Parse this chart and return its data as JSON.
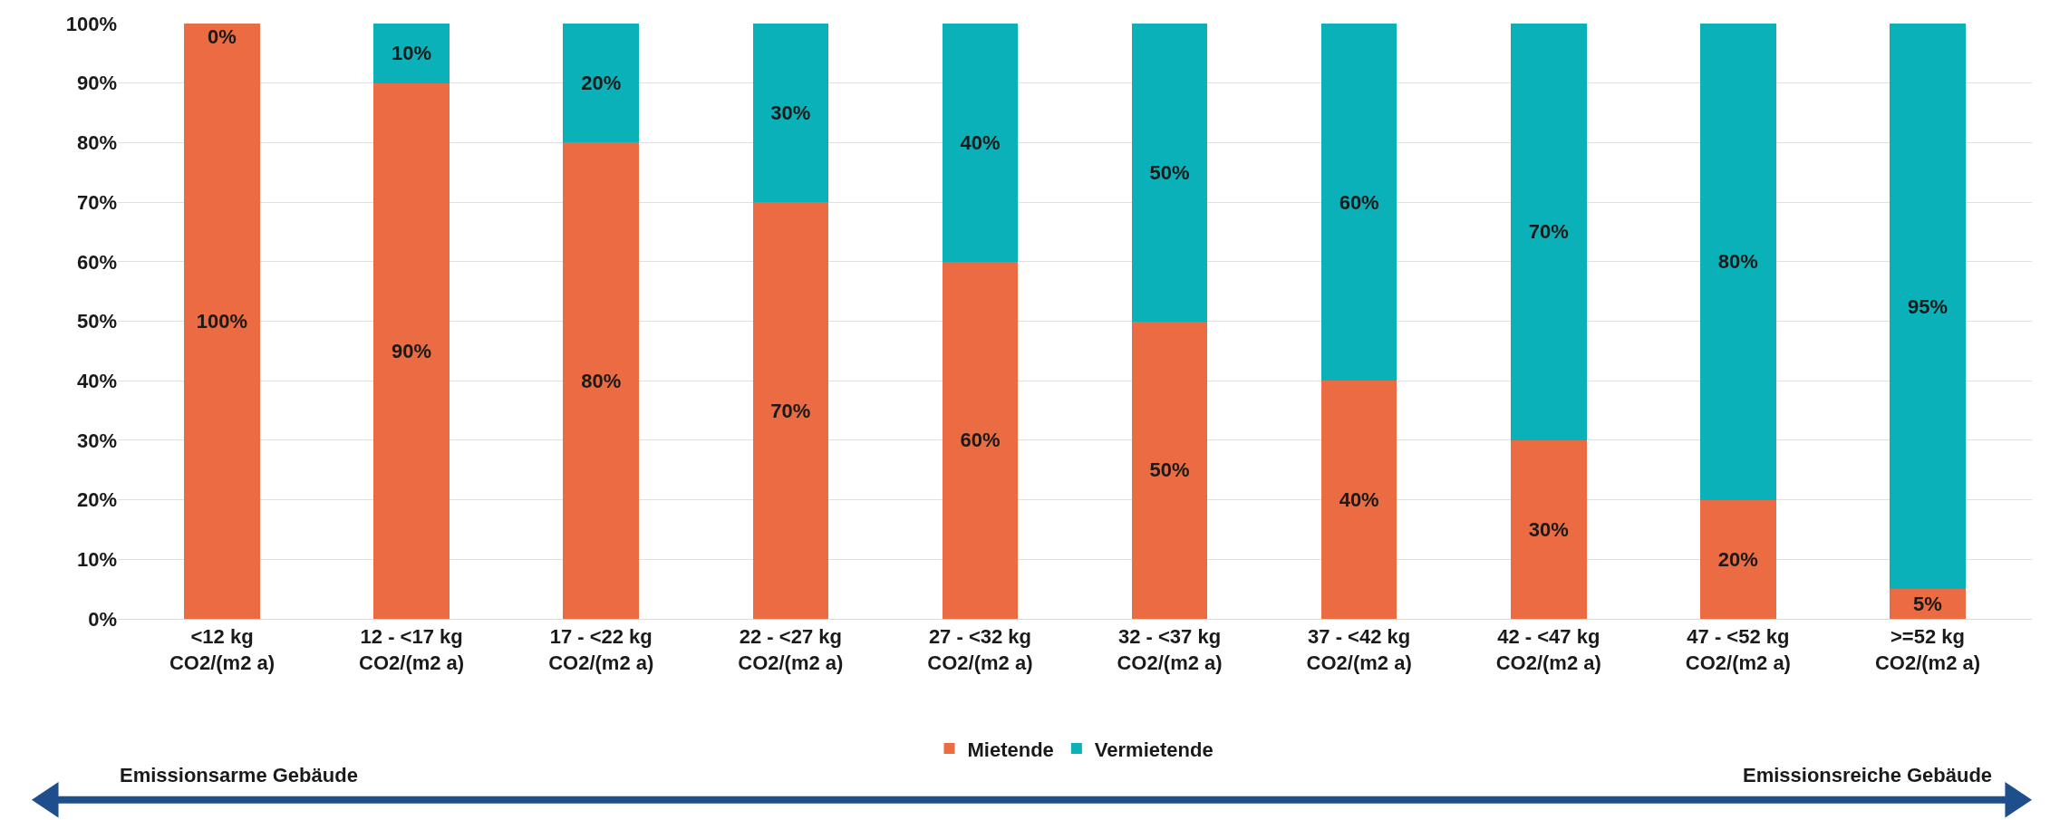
{
  "chart_data": {
    "type": "bar",
    "stacked": true,
    "categories": [
      "<12 kg\nCO2/(m2 a)",
      "12 - <17 kg\nCO2/(m2 a)",
      "17 - <22 kg\nCO2/(m2 a)",
      "22 - <27 kg\nCO2/(m2 a)",
      "27 - <32 kg\nCO2/(m2 a)",
      "32 - <37 kg\nCO2/(m2 a)",
      "37 - <42 kg\nCO2/(m2 a)",
      "42 - <47 kg\nCO2/(m2 a)",
      "47 - <52 kg\nCO2/(m2 a)",
      ">=52 kg\nCO2/(m2 a)"
    ],
    "series": [
      {
        "name": "Mietende",
        "color": "#eb6b42",
        "values": [
          100,
          90,
          80,
          70,
          60,
          50,
          40,
          30,
          20,
          5
        ],
        "value_labels": [
          "100%",
          "90%",
          "80%",
          "70%",
          "60%",
          "50%",
          "40%",
          "30%",
          "20%",
          "5%"
        ]
      },
      {
        "name": "Vermietende",
        "color": "#0bb1b9",
        "values": [
          0,
          10,
          20,
          30,
          40,
          50,
          60,
          70,
          80,
          95
        ],
        "value_labels": [
          "0%",
          "10%",
          "20%",
          "30%",
          "40%",
          "50%",
          "60%",
          "70%",
          "80%",
          "95%"
        ]
      }
    ],
    "ylim": [
      0,
      100
    ],
    "yticks": [
      {
        "value": 0,
        "label": "0%"
      },
      {
        "value": 10,
        "label": "10%"
      },
      {
        "value": 20,
        "label": "20%"
      },
      {
        "value": 30,
        "label": "30%"
      },
      {
        "value": 40,
        "label": "40%"
      },
      {
        "value": 50,
        "label": "50%"
      },
      {
        "value": 60,
        "label": "60%"
      },
      {
        "value": 70,
        "label": "70%"
      },
      {
        "value": 80,
        "label": "80%"
      },
      {
        "value": 90,
        "label": "90%"
      },
      {
        "value": 100,
        "label": "100%"
      }
    ],
    "grid": "y",
    "legend": "bottom",
    "annotations": [
      "Emissionsarme Gebäude",
      "Emissionsreiche Gebäude"
    ]
  }
}
